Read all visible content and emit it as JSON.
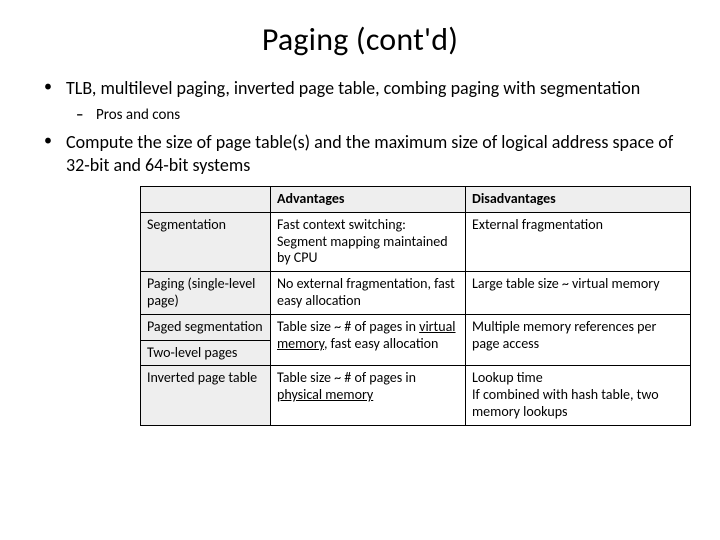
{
  "title": "Paging (cont'd)",
  "bullets": {
    "b1": "TLB, multilevel paging, inverted page table, combing paging with segmentation",
    "b1_sub1": "Pros and cons",
    "b2": "Compute the size of page table(s) and the maximum size of logical address space of 32-bit and 64-bit systems"
  },
  "table": {
    "headers": {
      "adv": "Advantages",
      "dis": "Disadvantages"
    },
    "rows": {
      "r1": {
        "label": "Segmentation",
        "adv": "Fast context switching: Segment mapping maintained by CPU",
        "dis": "External fragmentation"
      },
      "r2": {
        "label": "Paging (single-level page)",
        "adv": "No external fragmentation, fast easy allocation",
        "dis": "Large table size ~ virtual memory"
      },
      "r3": {
        "label_a": "Paged segmentation",
        "label_b": "Two-level pages",
        "adv_pre": "Table size ~ # of pages in ",
        "adv_u": "virtual memory",
        "adv_post": ", fast easy allocation",
        "dis": "Multiple memory references per page access"
      },
      "r4": {
        "label": "Inverted page table",
        "adv_pre": "Table size ~ # of pages in ",
        "adv_u": "physical memory",
        "dis_line1": "Lookup time",
        "dis_line2": "If combined with hash table, two memory lookups"
      }
    }
  }
}
